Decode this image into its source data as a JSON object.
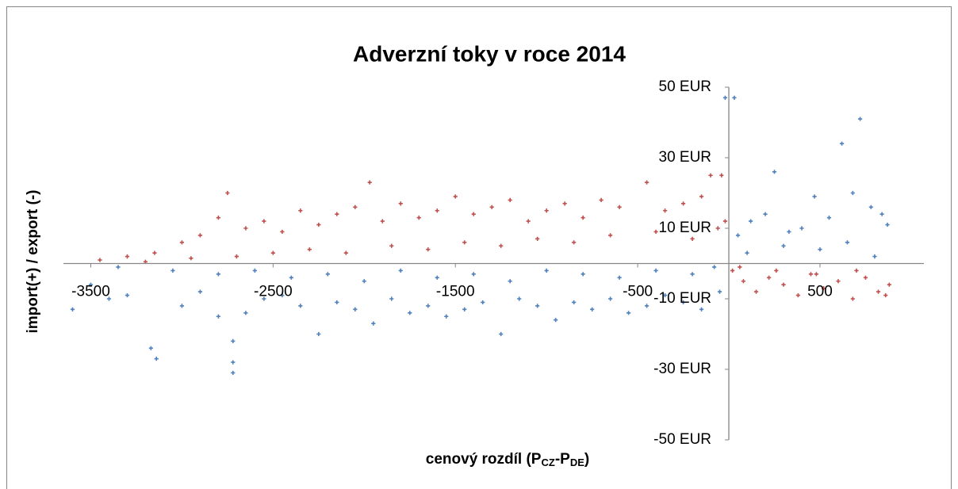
{
  "chart_data": {
    "type": "scatter",
    "title": "Adverzní toky v roce 2014",
    "x_label": [
      "cenový rozdíl (P",
      "CZ",
      "-P",
      "DE",
      ")"
    ],
    "y_label": "import(+) / export (-)",
    "xlim": [
      -3650,
      1070
    ],
    "xticks": [
      -3500,
      -2500,
      -1500,
      -500,
      500
    ],
    "ylim": [
      -50,
      50
    ],
    "yticks": [
      {
        "value": -50,
        "label": "-50 EUR"
      },
      {
        "value": -30,
        "label": "-30 EUR"
      },
      {
        "value": -10,
        "label": "-10 EUR"
      },
      {
        "value": 10,
        "label": "10 EUR"
      },
      {
        "value": 30,
        "label": "30 EUR"
      },
      {
        "value": 50,
        "label": "50 EUR"
      }
    ],
    "series": [
      {
        "color": "#4f81bd",
        "x": [
          -3600,
          -3500,
          -3400,
          -3300,
          -3170,
          -3140,
          -3000,
          -2900,
          -2800,
          -2720,
          -2720,
          -2720,
          -2650,
          -2550,
          -2450,
          -2350,
          -2250,
          -2150,
          -2050,
          -1950,
          -1850,
          -1750,
          -1650,
          -1550,
          -1450,
          -1350,
          -1250,
          -1150,
          -1050,
          -950,
          -850,
          -750,
          -650,
          -550,
          -450,
          -350,
          -250,
          -150,
          -50,
          -3350,
          -3050,
          -2800,
          -2600,
          -2400,
          -2200,
          -2000,
          -1800,
          -1600,
          -1400,
          -1200,
          -1000,
          -800,
          -600,
          -400,
          -200,
          -80,
          -20,
          30,
          50,
          120,
          200,
          250,
          330,
          400,
          470,
          550,
          620,
          680,
          720,
          780,
          840,
          870,
          100,
          300,
          500,
          650,
          800
        ],
        "values": [
          -13,
          -6,
          -10,
          -9,
          -24,
          -27,
          -12,
          -8,
          -15,
          -31,
          -28,
          -22,
          -14,
          -10,
          -9,
          -12,
          -20,
          -11,
          -13,
          -17,
          -10,
          -14,
          -12,
          -15,
          -13,
          -11,
          -20,
          -10,
          -12,
          -16,
          -11,
          -13,
          -10,
          -14,
          -12,
          -9,
          -11,
          -13,
          -8,
          -1,
          -2,
          -3,
          -2,
          -4,
          -3,
          -5,
          -2,
          -4,
          -3,
          -5,
          -2,
          -3,
          -4,
          -2,
          -3,
          -1,
          47,
          47,
          8,
          12,
          14,
          26,
          9,
          10,
          19,
          13,
          34,
          20,
          41,
          16,
          14,
          11,
          3,
          5,
          4,
          6,
          2
        ]
      },
      {
        "color": "#c0504d",
        "x": [
          -3450,
          -3300,
          -3150,
          -3000,
          -2900,
          -2800,
          -2750,
          -2650,
          -2550,
          -2450,
          -2350,
          -2250,
          -2150,
          -2050,
          -1970,
          -1900,
          -1800,
          -1700,
          -1600,
          -1500,
          -1400,
          -1300,
          -1200,
          -1100,
          -1000,
          -900,
          -800,
          -700,
          -600,
          -450,
          -350,
          -250,
          -150,
          -100,
          -40,
          -20,
          -3200,
          -2950,
          -2700,
          -2500,
          -2300,
          -2100,
          -1850,
          -1650,
          -1450,
          -1250,
          -1050,
          -850,
          -650,
          -400,
          -200,
          -60,
          20,
          80,
          150,
          220,
          300,
          380,
          450,
          520,
          600,
          680,
          750,
          820,
          880,
          60,
          260,
          480,
          700,
          860
        ],
        "values": [
          1,
          2,
          3,
          6,
          8,
          13,
          20,
          10,
          12,
          9,
          15,
          11,
          14,
          16,
          23,
          12,
          17,
          13,
          15,
          19,
          14,
          16,
          18,
          12,
          15,
          17,
          13,
          18,
          16,
          23,
          15,
          17,
          19,
          25,
          25,
          12,
          0.5,
          1.5,
          2,
          3,
          4,
          3,
          5,
          4,
          6,
          5,
          7,
          6,
          8,
          9,
          7,
          10,
          -2,
          -5,
          -8,
          -4,
          -6,
          -9,
          -3,
          -7,
          -5,
          -10,
          -4,
          -8,
          -6,
          -1,
          -2,
          -3,
          -2,
          -9
        ]
      }
    ]
  }
}
